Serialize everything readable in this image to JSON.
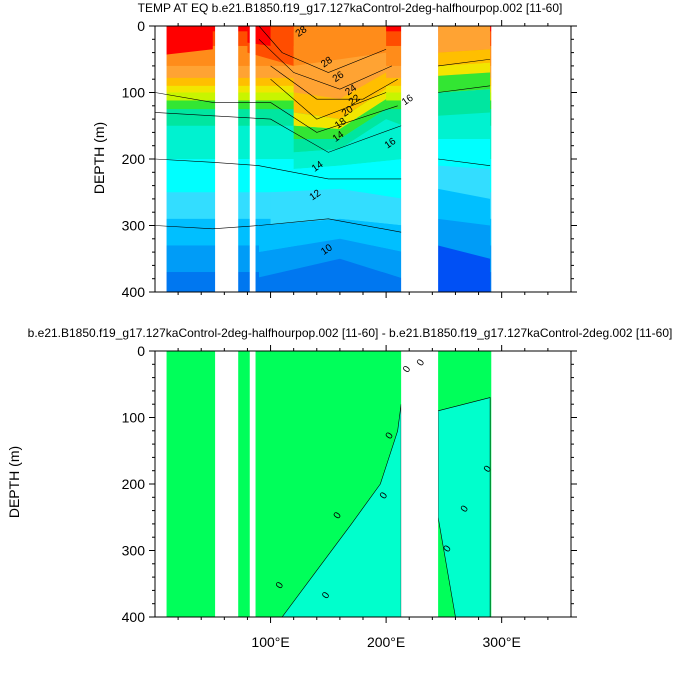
{
  "chart_data": [
    {
      "type": "heatmap",
      "title": "TEMP AT EQ b.e21.B1850.f19_g17.127kaControl-2deg-halfhourpop.002 [11-60]",
      "ylabel": "DEPTH (m)",
      "xlim": [
        0,
        360
      ],
      "ylim": [
        0,
        400
      ],
      "y_ticks": [
        "0",
        "100",
        "200",
        "300",
        "400"
      ],
      "x_ticks": [],
      "contour_labels": [
        "28",
        "28",
        "26",
        "24",
        "22",
        "20",
        "18",
        "16",
        "16",
        "14",
        "14",
        "12",
        "10"
      ],
      "note_levels_degC": [
        10,
        12,
        14,
        16,
        18,
        20,
        22,
        24,
        26,
        28
      ]
    },
    {
      "type": "heatmap",
      "title": "b.e21.B1850.f19_g17.127kaControl-2deg-halfhourpop.002 [11-60] - b.e21.B1850.f19_g17.127kaControl-2deg.002 [11-60]",
      "ylabel": "DEPTH (m)",
      "xlim": [
        0,
        360
      ],
      "ylim": [
        0,
        400
      ],
      "y_ticks": [
        "0",
        "100",
        "200",
        "300",
        "400"
      ],
      "x_ticks": [
        "100°E",
        "200°E",
        "300°E"
      ],
      "contour_labels": [
        "0",
        "0",
        "0",
        "0",
        "0",
        "0",
        "0",
        "0",
        "0",
        "0"
      ]
    }
  ],
  "colors": {
    "red": "#ff0000",
    "orange_red": "#ff4d00",
    "orange": "#ff8c1a",
    "light_orange": "#ffa333",
    "gold": "#ffbf00",
    "yellow": "#f2e600",
    "yellow_green": "#c8f500",
    "green": "#33e633",
    "aqua_green": "#00e6a0",
    "turquoise": "#00f2d0",
    "cyan": "#00ffff",
    "light_blue": "#33ddff",
    "sky": "#00bfff",
    "blue1": "#009cf7",
    "blue2": "#0077f0",
    "blue3": "#0050f5",
    "deep_blue": "#1a2ef7",
    "diff_green": "#00ff5a",
    "diff_teal": "#00ffcc"
  }
}
